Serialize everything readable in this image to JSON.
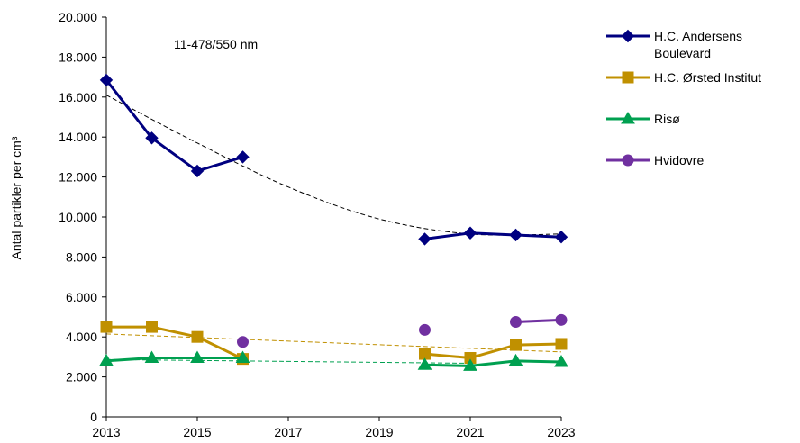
{
  "chart_data": {
    "type": "line",
    "annotation": "11-478/550 nm",
    "ylabel": "Antal partikler per cm³",
    "xlim": [
      2013,
      2023
    ],
    "ylim": [
      0,
      20000
    ],
    "x_ticks": [
      2013,
      2015,
      2017,
      2019,
      2021,
      2023
    ],
    "x_tick_labels": [
      "2013",
      "2015",
      "2017",
      "2019",
      "2021",
      "2023"
    ],
    "y_ticks": [
      0,
      2000,
      4000,
      6000,
      8000,
      10000,
      12000,
      14000,
      16000,
      18000,
      20000
    ],
    "y_tick_labels": [
      "0",
      "2.000",
      "4.000",
      "6.000",
      "8.000",
      "10.000",
      "12.000",
      "14.000",
      "16.000",
      "18.000",
      "20.000"
    ],
    "grid": false,
    "legend_position": "right",
    "series": [
      {
        "name": "H.C. Andersens Boulevard",
        "legend_lines": [
          "H.C. Andersens",
          "Boulevard"
        ],
        "color": "#000080",
        "marker": "diamond",
        "points": [
          [
            2013,
            16850
          ],
          [
            2014,
            13950
          ],
          [
            2015,
            12300
          ],
          [
            2016,
            13000
          ],
          [
            2020,
            8900
          ],
          [
            2021,
            9200
          ],
          [
            2022,
            9100
          ],
          [
            2023,
            9000
          ]
        ]
      },
      {
        "name": "H.C. Ørsted Institut",
        "legend_lines": [
          "H.C. Ørsted Institut"
        ],
        "color": "#C09000",
        "marker": "square",
        "points": [
          [
            2013,
            4500
          ],
          [
            2014,
            4500
          ],
          [
            2015,
            4000
          ],
          [
            2016,
            2900
          ],
          [
            2020,
            3150
          ],
          [
            2021,
            2950
          ],
          [
            2022,
            3600
          ],
          [
            2023,
            3650
          ]
        ]
      },
      {
        "name": "Risø",
        "legend_lines": [
          "Risø"
        ],
        "color": "#00A050",
        "marker": "triangle",
        "points": [
          [
            2013,
            2800
          ],
          [
            2014,
            2950
          ],
          [
            2015,
            2950
          ],
          [
            2016,
            2950
          ],
          [
            2020,
            2600
          ],
          [
            2021,
            2550
          ],
          [
            2022,
            2800
          ],
          [
            2023,
            2750
          ]
        ]
      },
      {
        "name": "Hvidovre",
        "legend_lines": [
          "Hvidovre"
        ],
        "color": "#7030A0",
        "marker": "circle",
        "points": [
          [
            2016,
            3750
          ],
          [
            2020,
            4350
          ],
          [
            2022,
            4750
          ],
          [
            2023,
            4850
          ]
        ]
      }
    ],
    "trendlines": [
      {
        "series": "H.C. Andersens Boulevard",
        "color": "#000000",
        "x_range": [
          2013,
          2023
        ],
        "points": [
          [
            2013,
            16100
          ],
          [
            2015,
            13700
          ],
          [
            2017,
            11500
          ],
          [
            2019,
            9900
          ],
          [
            2021,
            9150
          ],
          [
            2023,
            9150
          ]
        ]
      },
      {
        "series": "H.C. Ørsted Institut",
        "color": "#C09000",
        "x_range": [
          2013,
          2023
        ],
        "points": [
          [
            2013,
            4150
          ],
          [
            2023,
            3250
          ]
        ]
      },
      {
        "series": "Risø",
        "color": "#00A050",
        "x_range": [
          2013,
          2021
        ],
        "points": [
          [
            2013,
            2870
          ],
          [
            2021,
            2680
          ]
        ]
      }
    ]
  }
}
